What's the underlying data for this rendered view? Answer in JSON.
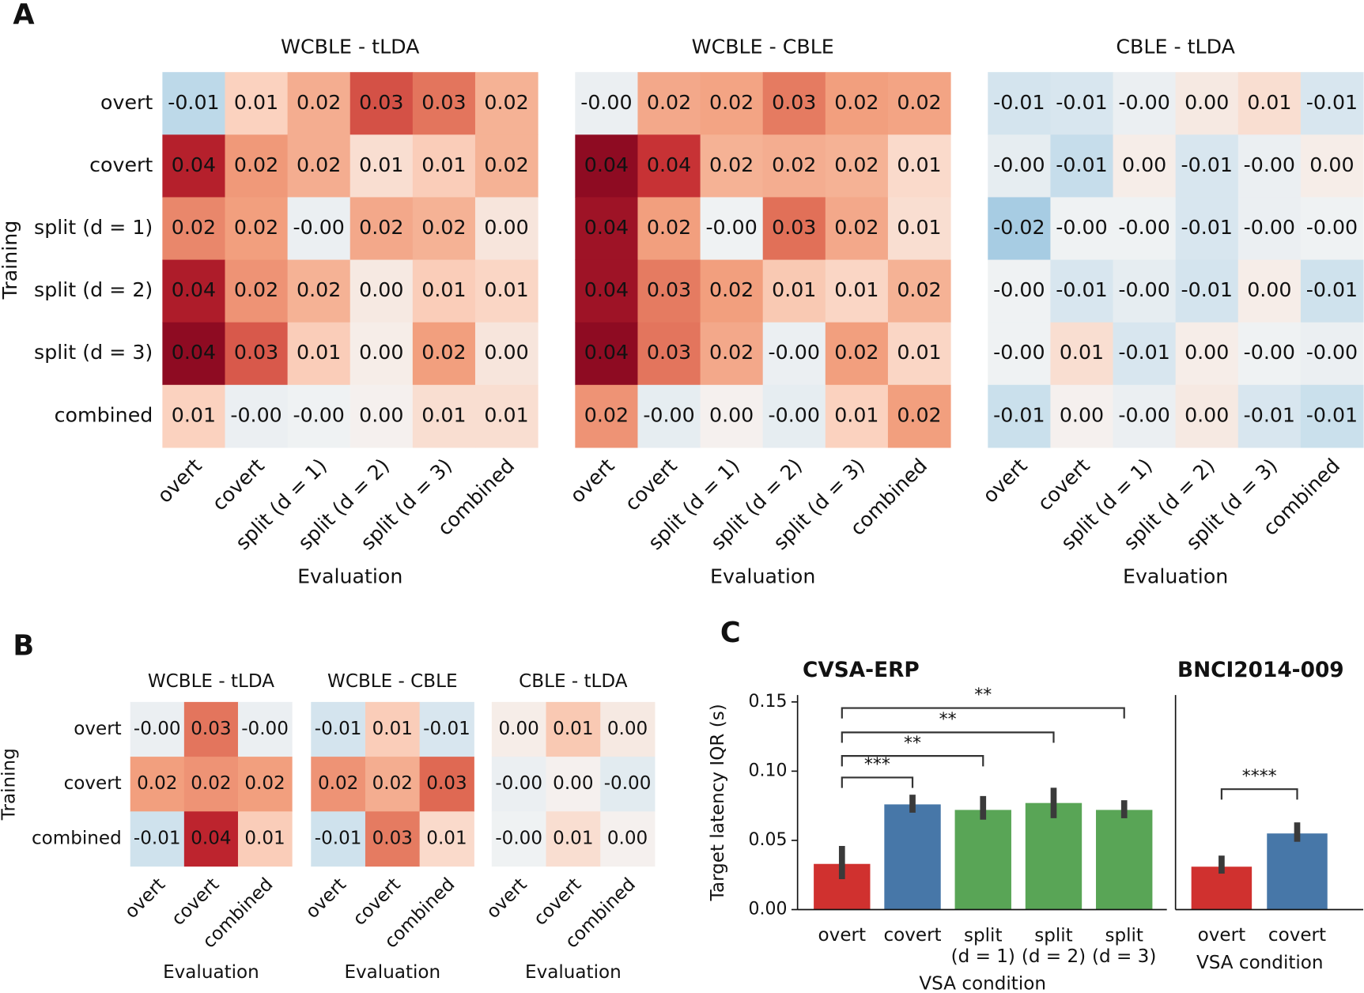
{
  "chart_data": [
    {
      "type": "heatmap",
      "panel": "A",
      "title": "WCBLE - tLDA",
      "xlabel": "Evaluation",
      "ylabel": "Training",
      "x_categories": [
        "overt",
        "covert",
        "split (d = 1)",
        "split (d = 2)",
        "split (d = 3)",
        "combined"
      ],
      "y_categories": [
        "overt",
        "covert",
        "split (d = 1)",
        "split (d = 2)",
        "split (d = 3)",
        "combined"
      ],
      "values": [
        [
          -0.012,
          0.009,
          0.017,
          0.032,
          0.027,
          0.016
        ],
        [
          0.039,
          0.021,
          0.017,
          0.006,
          0.01,
          0.016
        ],
        [
          0.024,
          0.02,
          -0.002,
          0.018,
          0.016,
          0.004
        ],
        [
          0.04,
          0.022,
          0.016,
          0.003,
          0.01,
          0.008
        ],
        [
          0.044,
          0.031,
          0.01,
          0.002,
          0.02,
          0.004
        ],
        [
          0.009,
          -0.002,
          -0.001,
          0.001,
          0.006,
          0.006
        ]
      ],
      "value_labels": [
        [
          "-0.01",
          "0.01",
          "0.02",
          "0.03",
          "0.03",
          "0.02"
        ],
        [
          "0.04",
          "0.02",
          "0.02",
          "0.01",
          "0.01",
          "0.02"
        ],
        [
          "0.02",
          "0.02",
          "-0.00",
          "0.02",
          "0.02",
          "0.00"
        ],
        [
          "0.04",
          "0.02",
          "0.02",
          "0.00",
          "0.01",
          "0.01"
        ],
        [
          "0.04",
          "0.03",
          "0.01",
          "0.00",
          "0.02",
          "0.00"
        ],
        [
          "0.01",
          "-0.00",
          "-0.00",
          "0.00",
          "0.01",
          "0.01"
        ]
      ]
    },
    {
      "type": "heatmap",
      "title": "WCBLE - CBLE",
      "xlabel": "Evaluation",
      "x_categories": [
        "overt",
        "covert",
        "split (d = 1)",
        "split (d = 2)",
        "split (d = 3)",
        "combined"
      ],
      "values": [
        [
          -0.002,
          0.018,
          0.019,
          0.026,
          0.02,
          0.019
        ],
        [
          0.044,
          0.036,
          0.016,
          0.017,
          0.016,
          0.007
        ],
        [
          0.042,
          0.02,
          -0.001,
          0.028,
          0.018,
          0.006
        ],
        [
          0.042,
          0.026,
          0.02,
          0.011,
          0.008,
          0.016
        ],
        [
          0.044,
          0.027,
          0.018,
          -0.002,
          0.02,
          0.008
        ],
        [
          0.022,
          -0.003,
          0.001,
          -0.003,
          0.009,
          0.02
        ]
      ],
      "value_labels": [
        [
          "-0.00",
          "0.02",
          "0.02",
          "0.03",
          "0.02",
          "0.02"
        ],
        [
          "0.04",
          "0.04",
          "0.02",
          "0.02",
          "0.02",
          "0.01"
        ],
        [
          "0.04",
          "0.02",
          "-0.00",
          "0.03",
          "0.02",
          "0.01"
        ],
        [
          "0.04",
          "0.03",
          "0.02",
          "0.01",
          "0.01",
          "0.02"
        ],
        [
          "0.04",
          "0.03",
          "0.02",
          "-0.00",
          "0.02",
          "0.01"
        ],
        [
          "0.02",
          "-0.00",
          "0.00",
          "-0.00",
          "0.01",
          "0.02"
        ]
      ]
    },
    {
      "type": "heatmap",
      "title": "CBLE - tLDA",
      "xlabel": "Evaluation",
      "x_categories": [
        "overt",
        "covert",
        "split (d = 1)",
        "split (d = 2)",
        "split (d = 3)",
        "combined"
      ],
      "values": [
        [
          -0.007,
          -0.006,
          -0.002,
          0.003,
          0.006,
          -0.006
        ],
        [
          -0.003,
          -0.01,
          0.002,
          -0.006,
          -0.002,
          0.002
        ],
        [
          -0.016,
          -0.001,
          -0.001,
          -0.006,
          -0.002,
          -0.001
        ],
        [
          -0.001,
          -0.006,
          -0.003,
          -0.007,
          0.002,
          -0.008
        ],
        [
          -0.001,
          0.006,
          -0.006,
          0.002,
          -0.001,
          -0.002
        ],
        [
          -0.009,
          0.001,
          -0.002,
          0.003,
          -0.006,
          -0.009
        ]
      ],
      "value_labels": [
        [
          "-0.01",
          "-0.01",
          "-0.00",
          "0.00",
          "0.01",
          "-0.01"
        ],
        [
          "-0.00",
          "-0.01",
          "0.00",
          "-0.01",
          "-0.00",
          "0.00"
        ],
        [
          "-0.02",
          "-0.00",
          "-0.00",
          "-0.01",
          "-0.00",
          "-0.00"
        ],
        [
          "-0.00",
          "-0.01",
          "-0.00",
          "-0.01",
          "0.00",
          "-0.01"
        ],
        [
          "-0.00",
          "0.01",
          "-0.01",
          "0.00",
          "-0.00",
          "-0.00"
        ],
        [
          "-0.01",
          "0.00",
          "-0.00",
          "0.00",
          "-0.01",
          "-0.01"
        ]
      ]
    },
    {
      "type": "heatmap",
      "panel": "B",
      "title": "WCBLE - tLDA",
      "xlabel": "Evaluation",
      "ylabel": "Training",
      "x_categories": [
        "overt",
        "covert",
        "combined"
      ],
      "y_categories": [
        "overt",
        "covert",
        "combined"
      ],
      "values": [
        [
          -0.002,
          0.027,
          -0.002
        ],
        [
          0.02,
          0.022,
          0.02
        ],
        [
          -0.008,
          0.038,
          0.01
        ]
      ],
      "value_labels": [
        [
          "-0.00",
          "0.03",
          "-0.00"
        ],
        [
          "0.02",
          "0.02",
          "0.02"
        ],
        [
          "-0.01",
          "0.04",
          "0.01"
        ]
      ]
    },
    {
      "type": "heatmap",
      "title": "WCBLE - CBLE",
      "xlabel": "Evaluation",
      "x_categories": [
        "overt",
        "covert",
        "combined"
      ],
      "values": [
        [
          -0.007,
          0.01,
          -0.006
        ],
        [
          0.022,
          0.017,
          0.029
        ],
        [
          -0.008,
          0.026,
          0.007
        ]
      ],
      "value_labels": [
        [
          "-0.01",
          "0.01",
          "-0.01"
        ],
        [
          "0.02",
          "0.02",
          "0.03"
        ],
        [
          "-0.01",
          "0.03",
          "0.01"
        ]
      ]
    },
    {
      "type": "heatmap",
      "title": "CBLE - tLDA",
      "xlabel": "Evaluation",
      "x_categories": [
        "overt",
        "covert",
        "combined"
      ],
      "values": [
        [
          0.002,
          0.011,
          0.003
        ],
        [
          -0.002,
          0.001,
          -0.004
        ],
        [
          -0.001,
          0.006,
          0.001
        ]
      ],
      "value_labels": [
        [
          "0.00",
          "0.01",
          "0.00"
        ],
        [
          "-0.00",
          "0.00",
          "-0.00"
        ],
        [
          "-0.00",
          "0.01",
          "0.00"
        ]
      ]
    },
    {
      "type": "bar",
      "panel": "C",
      "title": "CVSA-ERP",
      "xlabel": "VSA condition",
      "ylabel": "Target latency IQR (s)",
      "categories": [
        "overt",
        "covert",
        "split (d = 1)",
        "split (d = 2)",
        "split (d = 3)"
      ],
      "values": [
        0.033,
        0.076,
        0.072,
        0.077,
        0.072
      ],
      "ci_low": [
        0.022,
        0.07,
        0.065,
        0.066,
        0.066
      ],
      "ci_high": [
        0.046,
        0.083,
        0.082,
        0.088,
        0.079
      ],
      "colors": [
        "#d0312f",
        "#4777a8",
        "#59a556",
        "#59a556",
        "#59a556"
      ],
      "ylim": [
        0,
        0.155
      ],
      "yticks": [
        {
          "value": 0,
          "label": "0.00"
        },
        {
          "value": 0.05,
          "label": "0.05"
        },
        {
          "value": 0.1,
          "label": "0.10"
        },
        {
          "value": 0.15,
          "label": "0.15"
        }
      ],
      "annotations": [
        {
          "from": "overt",
          "to": "covert",
          "y": 0.0954,
          "text": "***"
        },
        {
          "from": "overt",
          "to": "split (d = 1)",
          "y": 0.111,
          "text": "**"
        },
        {
          "from": "overt",
          "to": "split (d = 2)",
          "y": 0.128,
          "text": "**"
        },
        {
          "from": "overt",
          "to": "split (d = 3)",
          "y": 0.1456,
          "text": "**"
        }
      ]
    },
    {
      "type": "bar",
      "title": "BNCI2014-009",
      "xlabel": "VSA condition",
      "categories": [
        "overt",
        "covert"
      ],
      "values": [
        0.031,
        0.055
      ],
      "ci_low": [
        0.026,
        0.049
      ],
      "ci_high": [
        0.039,
        0.063
      ],
      "colors": [
        "#d0312f",
        "#4777a8"
      ],
      "ylim": [
        0,
        0.155
      ],
      "annotations": [
        {
          "from": "overt",
          "to": "covert",
          "y": 0.087,
          "text": "****"
        }
      ]
    }
  ]
}
